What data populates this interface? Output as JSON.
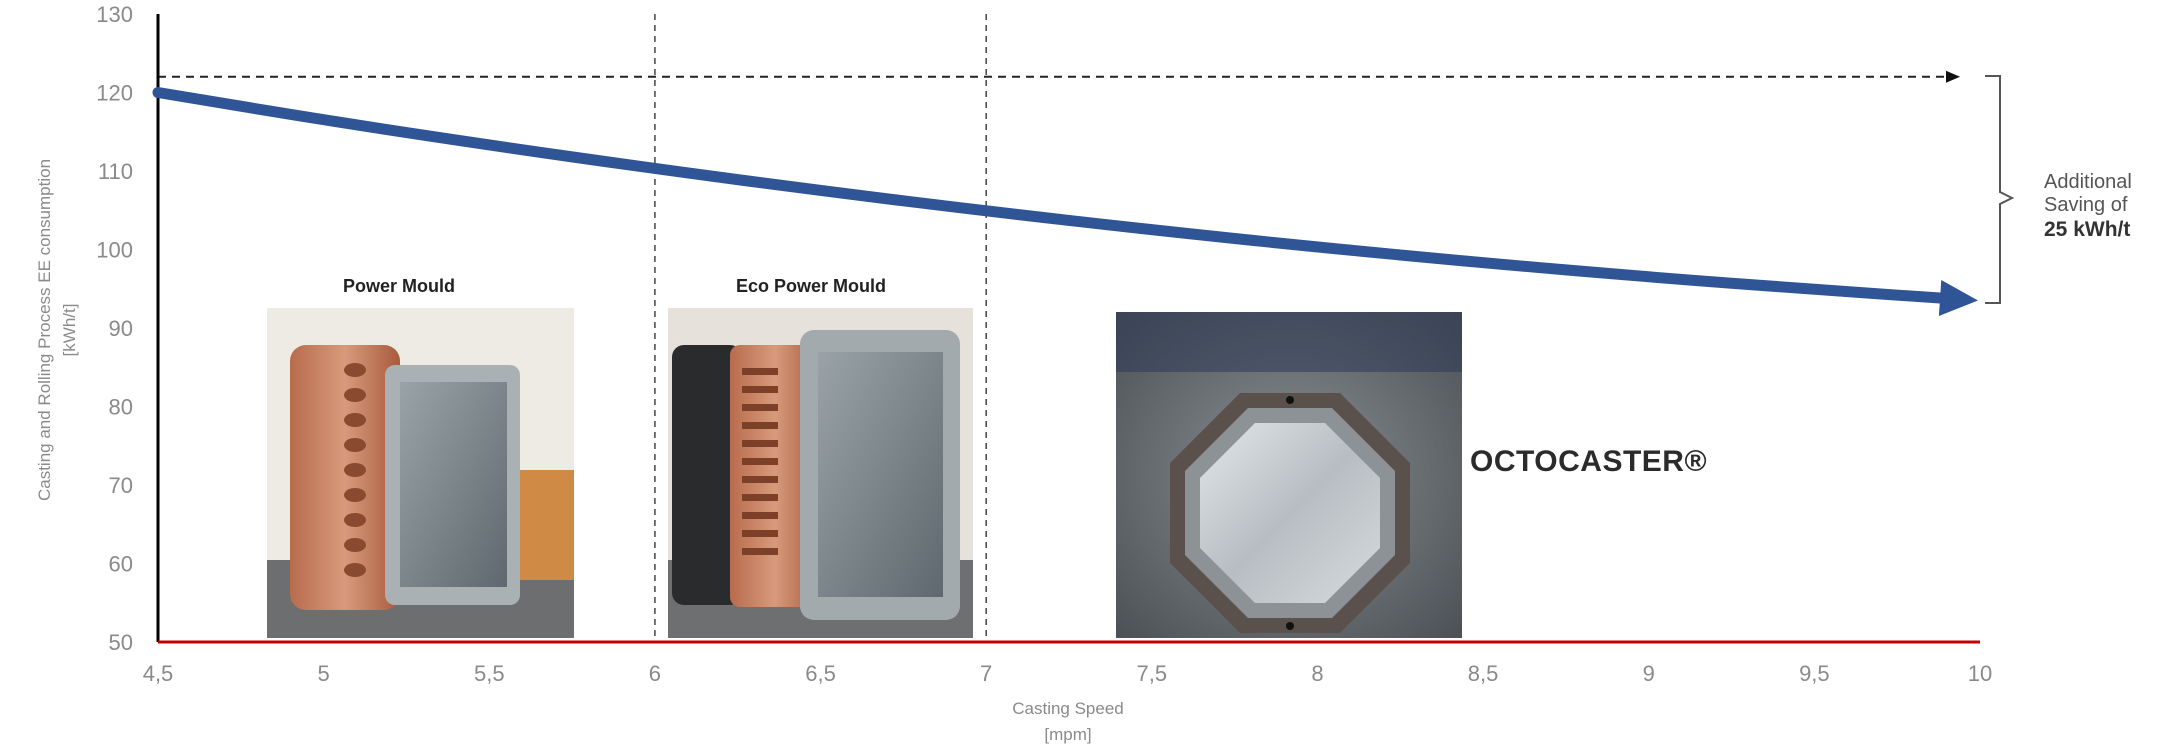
{
  "chart_data": {
    "type": "line",
    "x": [
      4.5,
      5,
      5.5,
      6,
      6.5,
      7,
      7.5,
      8,
      8.5,
      9,
      9.5,
      10
    ],
    "series": [
      {
        "name": "",
        "values": [
          120,
          116.5,
          113.3,
          110.3,
          107.5,
          104.9,
          102.5,
          100.3,
          98.3,
          96.5,
          94.9,
          93.5
        ]
      }
    ],
    "reference_line_y": 122,
    "baseline_y": 50,
    "dividers_x": [
      6,
      7
    ],
    "xlabel": "Casting Speed",
    "xunit": "[mpm]",
    "ylabel": "Casting and Rolling Process EE consumption",
    "yunit": "[kWh/t]",
    "xlim": [
      4.5,
      10
    ],
    "ylim": [
      50,
      130
    ],
    "x_ticks": [
      "4,5",
      "5",
      "5,5",
      "6",
      "6,5",
      "7",
      "7,5",
      "8",
      "8,5",
      "9",
      "9,5",
      "10"
    ],
    "y_ticks": [
      "50",
      "60",
      "70",
      "80",
      "90",
      "100",
      "110",
      "120",
      "130"
    ],
    "grid": false,
    "colors": {
      "curve": "#2f5597",
      "baseline": "#c00000",
      "axis": "#000000",
      "reference": "#222222"
    }
  },
  "photos": {
    "power_mould": "Power Mould",
    "eco_power_mould": "Eco Power Mould",
    "octocaster": "OCTOCASTER®"
  },
  "annotation": {
    "line1": "Additional",
    "line2": "Saving of",
    "line3": "25 kWh/t"
  }
}
